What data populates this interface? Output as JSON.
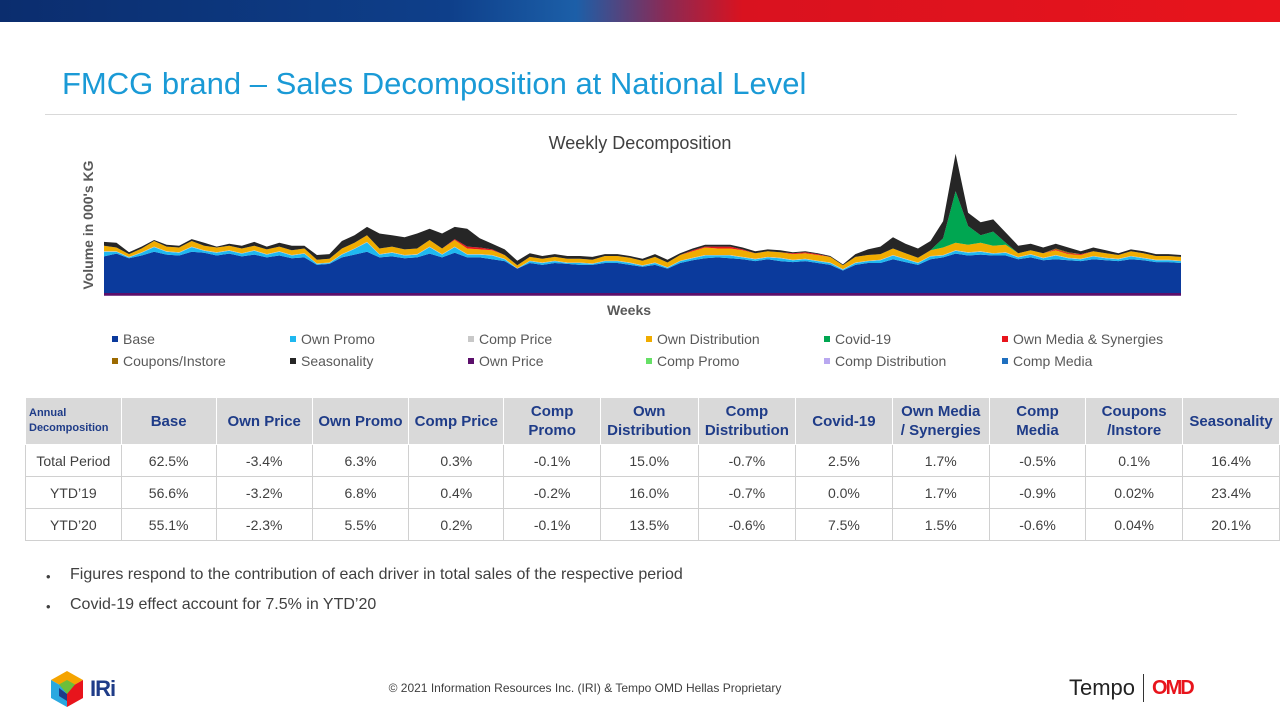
{
  "header": {
    "title": "FMCG brand – Sales Decomposition at National Level"
  },
  "chart_data": {
    "type": "area",
    "title": "Weekly Decomposition",
    "xlabel": "Weeks",
    "ylabel": "Volume in 000's KG",
    "stacked": true,
    "ylim": [
      0,
      160
    ],
    "grid": false,
    "legend_position": "bottom",
    "series": [
      {
        "name": "Base",
        "color": "#0b3a9c",
        "values": [
          39,
          42,
          37,
          40,
          44,
          41,
          40,
          44,
          43,
          40,
          42,
          39,
          41,
          38,
          40,
          37,
          38,
          30,
          31,
          38,
          41,
          44,
          38,
          39,
          37,
          38,
          42,
          38,
          43,
          38,
          38,
          36,
          34,
          26,
          32,
          30,
          32,
          31,
          30,
          30,
          32,
          32,
          30,
          28,
          30,
          26,
          32,
          35,
          37,
          38,
          37,
          36,
          34,
          36,
          34,
          33,
          34,
          32,
          30,
          24,
          30,
          32,
          32,
          36,
          33,
          30,
          36,
          38,
          42,
          40,
          41,
          40,
          40,
          36,
          38,
          35,
          36,
          35,
          34,
          36,
          35,
          34,
          36,
          35,
          33,
          33,
          32
        ]
      },
      {
        "name": "Own Promo",
        "color": "#1fb8f0",
        "values": [
          5,
          2,
          1,
          3,
          5,
          3,
          3,
          5,
          2,
          3,
          3,
          3,
          4,
          3,
          4,
          3,
          4,
          1,
          1,
          3,
          6,
          10,
          3,
          4,
          3,
          3,
          7,
          3,
          6,
          3,
          3,
          4,
          2,
          0,
          2,
          2,
          2,
          1,
          2,
          1,
          2,
          2,
          2,
          1,
          2,
          1,
          2,
          2,
          3,
          2,
          3,
          2,
          2,
          2,
          3,
          2,
          2,
          2,
          2,
          1,
          2,
          2,
          3,
          4,
          3,
          2,
          3,
          2,
          3,
          3,
          3,
          2,
          3,
          2,
          3,
          2,
          4,
          2,
          2,
          3,
          2,
          2,
          3,
          2,
          2,
          2,
          2
        ]
      },
      {
        "name": "Comp Price",
        "color": "#c8c8c8",
        "values": [
          0.5,
          0.5,
          0.5,
          0.5,
          0.5,
          0.5,
          0.5,
          0.5,
          0.5,
          0.5,
          0.5,
          0.5,
          0.5,
          0.5,
          0.5,
          0.5,
          0.5,
          0.5,
          0.5,
          0.5,
          0.5,
          0.5,
          0.5,
          0.5,
          0.5,
          0.5,
          0.5,
          0.5,
          0.5,
          0.5,
          0.5,
          0.5,
          0.5,
          0.5,
          0.5,
          0.5,
          0.5,
          0.5,
          0.5,
          0.5,
          0.5,
          0.5,
          0.5,
          0.5,
          0.5,
          0.5,
          0.5,
          0.5,
          0.5,
          0.5,
          0.5,
          0.5,
          0.5,
          0.5,
          0.5,
          0.5,
          0.5,
          0.5,
          0.5,
          0.5,
          0.5,
          0.5,
          0.5,
          0.5,
          0.5,
          0.5,
          0.5,
          0.5,
          0.5,
          0.5,
          0.5,
          0.5,
          0.5,
          0.5,
          0.5,
          0.5,
          0.5,
          0.5,
          0.5,
          0.5,
          0.5,
          0.5,
          0.5,
          0.5,
          0.5,
          0.5,
          0.5
        ]
      },
      {
        "name": "Own Distribution",
        "color": "#f0ac00",
        "values": [
          6,
          4,
          3,
          4,
          6,
          5,
          5,
          6,
          5,
          5,
          5,
          5,
          5,
          5,
          5,
          5,
          5,
          4,
          4,
          6,
          6,
          7,
          6,
          6,
          6,
          6,
          7,
          6,
          7,
          6,
          5,
          5,
          4,
          3,
          4,
          4,
          4,
          4,
          4,
          4,
          5,
          5,
          5,
          5,
          6,
          5,
          6,
          7,
          8,
          7,
          7,
          7,
          6,
          6,
          6,
          6,
          6,
          6,
          6,
          4,
          6,
          6,
          6,
          7,
          6,
          5,
          6,
          8,
          8,
          8,
          9,
          8,
          8,
          4,
          4,
          5,
          5,
          4,
          4,
          5,
          5,
          4,
          5,
          5,
          4,
          4,
          4
        ]
      },
      {
        "name": "Covid-19",
        "color": "#00a651",
        "values": [
          0,
          0,
          0,
          0,
          0,
          0,
          0,
          0,
          0,
          0,
          0,
          0,
          0,
          0,
          0,
          0,
          0,
          0,
          0,
          0,
          0,
          0,
          0,
          0,
          0,
          0,
          0,
          0,
          0,
          0,
          0,
          0,
          0,
          0,
          0,
          0,
          0,
          0,
          0,
          0,
          0,
          0,
          0,
          0,
          0,
          0,
          0,
          0,
          0,
          0,
          0,
          0,
          0,
          0,
          0,
          0,
          0,
          0,
          0,
          0,
          0,
          0,
          0,
          0,
          0,
          0,
          0,
          10,
          55,
          20,
          8,
          15,
          2,
          0,
          0,
          0,
          0,
          0,
          0,
          0,
          0,
          0,
          0,
          0,
          0,
          0,
          0
        ]
      },
      {
        "name": "Own Media & Synergies",
        "color": "#e8141c",
        "values": [
          0,
          0,
          0,
          0,
          0,
          0,
          0,
          0,
          0,
          0,
          0,
          0,
          0,
          0,
          0,
          0,
          0,
          0,
          0,
          0,
          0,
          0,
          0,
          0,
          0,
          0,
          0,
          0,
          1,
          2,
          2,
          1,
          0,
          0,
          0,
          0,
          0,
          0,
          0,
          0,
          0,
          0,
          0,
          0,
          0,
          0,
          0,
          1,
          1,
          2,
          2,
          1,
          0,
          0,
          0,
          1,
          1,
          1,
          0,
          0,
          0,
          0,
          0,
          0,
          0,
          0,
          0,
          0,
          0,
          0,
          0,
          0,
          0,
          0,
          0,
          0,
          1,
          1,
          1,
          0,
          0,
          0,
          0,
          0,
          0,
          0,
          0
        ]
      },
      {
        "name": "Coupons/Instore",
        "color": "#9c6a00",
        "values": [
          0,
          0,
          0,
          0,
          0,
          0,
          0,
          0,
          0,
          0,
          0,
          0,
          0,
          0,
          0,
          0,
          0,
          0,
          0,
          0,
          0,
          0,
          0,
          0,
          0,
          0,
          0,
          0,
          0,
          0,
          0,
          0,
          0,
          0,
          0,
          0,
          0,
          0,
          0,
          0,
          0,
          0,
          0,
          0,
          0,
          0,
          0,
          0,
          0,
          0,
          0,
          0,
          0,
          0,
          0,
          0,
          0,
          0,
          0,
          0,
          0,
          0,
          0,
          0,
          0,
          0,
          0,
          0,
          0,
          0,
          0,
          0,
          0,
          0,
          0,
          0,
          1,
          1,
          0,
          0,
          0,
          0,
          0,
          0,
          0,
          0,
          0
        ]
      },
      {
        "name": "Seasonality",
        "color": "#262626",
        "values": [
          4,
          5,
          2,
          2,
          1,
          2,
          2,
          2,
          3,
          1,
          2,
          3,
          4,
          3,
          4,
          5,
          3,
          5,
          5,
          8,
          8,
          9,
          16,
          12,
          13,
          16,
          12,
          16,
          13,
          19,
          10,
          6,
          6,
          5,
          4,
          3,
          3,
          3,
          3,
          3,
          2,
          2,
          2,
          2,
          3,
          3,
          2,
          2,
          2,
          2,
          2,
          2,
          2,
          2,
          2,
          1,
          1,
          1,
          1,
          1,
          3,
          6,
          8,
          12,
          10,
          10,
          10,
          18,
          40,
          14,
          14,
          13,
          11,
          8,
          7,
          6,
          5,
          5,
          3,
          4,
          3,
          2,
          2,
          2,
          2,
          2,
          2
        ]
      },
      {
        "name": "Own Price",
        "color": "#5b0f6b",
        "values": [
          -3,
          -3,
          -3,
          -3,
          -3,
          -3,
          -3,
          -3,
          -3,
          -3,
          -3,
          -3,
          -3,
          -3,
          -3,
          -3,
          -3,
          -3,
          -3,
          -3,
          -3,
          -3,
          -3,
          -3,
          -3,
          -3,
          -3,
          -3,
          -3,
          -3,
          -3,
          -3,
          -3,
          -3,
          -3,
          -3,
          -3,
          -3,
          -3,
          -3,
          -3,
          -3,
          -3,
          -3,
          -3,
          -3,
          -3,
          -3,
          -3,
          -3,
          -3,
          -3,
          -3,
          -3,
          -3,
          -3,
          -3,
          -3,
          -3,
          -3,
          -3,
          -3,
          -3,
          -3,
          -3,
          -3,
          -3,
          -3,
          -3,
          -3,
          -3,
          -3,
          -3,
          -3,
          -3,
          -3,
          -3,
          -3,
          -3,
          -3,
          -3,
          -3,
          -3,
          -3,
          -3,
          -3,
          -3
        ]
      },
      {
        "name": "Comp Promo",
        "color": "#66e066",
        "values": [
          0,
          0,
          0,
          0,
          0,
          0,
          0,
          0,
          0,
          0,
          0,
          0,
          0,
          0,
          0,
          0,
          0,
          0,
          0,
          0,
          0,
          0,
          0,
          0,
          0,
          0,
          0,
          0,
          0,
          0,
          0,
          0,
          0,
          0,
          0,
          0,
          0,
          0,
          0,
          0,
          0,
          0,
          0,
          0,
          0,
          0,
          0,
          0,
          0,
          0,
          0,
          0,
          0,
          0,
          0,
          0,
          0,
          0,
          0,
          0,
          0,
          0,
          0,
          0,
          0,
          0,
          0,
          0,
          0,
          0,
          0,
          0,
          0,
          0,
          0,
          0,
          0,
          0,
          0,
          0,
          0,
          0,
          0,
          0,
          0,
          0,
          0
        ]
      },
      {
        "name": "Comp Distribution",
        "color": "#b9a8f0",
        "values": [
          0,
          0,
          0,
          0,
          0,
          0,
          0,
          0,
          0,
          0,
          0,
          0,
          0,
          0,
          0,
          0,
          0,
          0,
          0,
          0,
          0,
          0,
          0,
          0,
          0,
          0,
          0,
          0,
          0,
          0,
          0,
          0,
          0,
          0,
          0,
          0,
          0,
          0,
          0,
          0,
          0,
          0,
          0,
          0,
          0,
          0,
          0,
          0,
          0,
          0,
          0,
          0,
          0,
          0,
          0,
          0,
          0,
          0,
          0,
          0,
          0,
          0,
          0,
          0,
          0,
          0,
          0,
          0,
          0,
          0,
          0,
          0,
          0,
          0,
          0,
          0,
          0,
          0,
          0,
          0,
          0,
          0,
          0,
          0,
          0,
          0,
          0
        ]
      },
      {
        "name": "Comp Media",
        "color": "#1f6fbf",
        "values": [
          0,
          0,
          0,
          0,
          0,
          0,
          0,
          0,
          0,
          0,
          0,
          0,
          0,
          0,
          0,
          0,
          0,
          0,
          0,
          0,
          0,
          0,
          0,
          0,
          0,
          0,
          0,
          0,
          0,
          0,
          0,
          0,
          0,
          0,
          0,
          0,
          0,
          0,
          0,
          0,
          0,
          0,
          0,
          0,
          0,
          0,
          0,
          0,
          0,
          0,
          0,
          0,
          0,
          0,
          0,
          0,
          0,
          0,
          0,
          0,
          0,
          0,
          0,
          0,
          0,
          0,
          0,
          0,
          0,
          0,
          0,
          0,
          0,
          0,
          0,
          0,
          0,
          0,
          0,
          0,
          0,
          0,
          0,
          0,
          0,
          0,
          0
        ]
      }
    ]
  },
  "legend": {
    "items": [
      {
        "label": "Base",
        "color": "#0b3a9c"
      },
      {
        "label": "Own Promo",
        "color": "#1fb8f0"
      },
      {
        "label": "Comp Price",
        "color": "#c8c8c8"
      },
      {
        "label": "Own Distribution",
        "color": "#f0ac00"
      },
      {
        "label": "Covid-19",
        "color": "#00a651"
      },
      {
        "label": "Own Media & Synergies",
        "color": "#e8141c"
      },
      {
        "label": "Coupons/Instore",
        "color": "#9c6a00"
      },
      {
        "label": "Seasonality",
        "color": "#262626"
      },
      {
        "label": "Own Price",
        "color": "#5b0f6b"
      },
      {
        "label": "Comp Promo",
        "color": "#66e066"
      },
      {
        "label": "Comp Distribution",
        "color": "#b9a8f0"
      },
      {
        "label": "Comp Media",
        "color": "#1f6fbf"
      }
    ]
  },
  "table": {
    "corner_label_line1": "Annual",
    "corner_label_line2": "Decomposition",
    "columns": [
      {
        "line1": "Base",
        "line2": ""
      },
      {
        "line1": "Own Price",
        "line2": ""
      },
      {
        "line1": "Own Promo",
        "line2": ""
      },
      {
        "line1": "Comp Price",
        "line2": ""
      },
      {
        "line1": "Comp",
        "line2": "Promo"
      },
      {
        "line1": "Own",
        "line2": "Distribution"
      },
      {
        "line1": "Comp",
        "line2": "Distribution"
      },
      {
        "line1": "Covid-19",
        "line2": ""
      },
      {
        "line1": "Own Media",
        "line2": "/ Synergies"
      },
      {
        "line1": "Comp",
        "line2": "Media"
      },
      {
        "line1": "Coupons",
        "line2": "/Instore"
      },
      {
        "line1": "Seasonality",
        "line2": ""
      }
    ],
    "rows": [
      {
        "label": "Total Period",
        "values": [
          "62.5%",
          "-3.4%",
          "6.3%",
          "0.3%",
          "-0.1%",
          "15.0%",
          "-0.7%",
          "2.5%",
          "1.7%",
          "-0.5%",
          "0.1%",
          "16.4%"
        ]
      },
      {
        "label": "YTD’19",
        "values": [
          "56.6%",
          "-3.2%",
          "6.8%",
          "0.4%",
          "-0.2%",
          "16.0%",
          "-0.7%",
          "0.0%",
          "1.7%",
          "-0.9%",
          "0.02%",
          "23.4%"
        ]
      },
      {
        "label": "YTD’20",
        "values": [
          "55.1%",
          "-2.3%",
          "5.5%",
          "0.2%",
          "-0.1%",
          "13.5%",
          "-0.6%",
          "7.5%",
          "1.5%",
          "-0.6%",
          "0.04%",
          "20.1%"
        ]
      }
    ]
  },
  "notes": {
    "bullet_symbol": "•",
    "items": [
      "Figures respond to the contribution of each driver in total sales of the respective period",
      "Covid-19 effect account for 7.5% in YTD’20"
    ]
  },
  "footer": {
    "copyright": "© 2021 Information Resources Inc. (IRI) & Tempo OMD Hellas Proprietary",
    "iri_logo_text": "IRi",
    "tempo_logo_text": "Tempo",
    "omd_logo_text": "OMD"
  }
}
